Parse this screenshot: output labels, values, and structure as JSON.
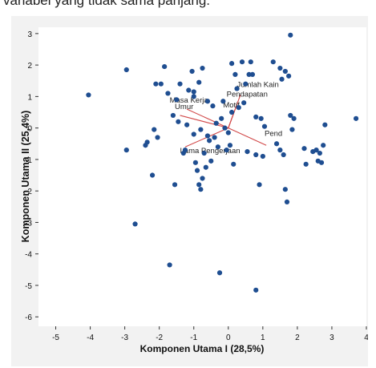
{
  "caption": "variabel yang tidak sama panjang.",
  "chart_data": {
    "type": "scatter",
    "title": "",
    "xlabel": "Komponen Utama I (28,5%)",
    "ylabel": "Komponen Utama II (25,4%)",
    "xlim": [
      -5.5,
      4.0
    ],
    "ylim": [
      -6.3,
      3.2
    ],
    "x_ticks": [
      -5,
      -4,
      -3,
      -2,
      -1,
      0,
      1,
      2,
      3,
      4
    ],
    "x_tick_labels": [
      "-5",
      "-4",
      "-3",
      "-2",
      "-1",
      "0",
      "1",
      "2",
      "3",
      "4"
    ],
    "y_ticks": [
      3,
      2,
      1,
      0,
      -1,
      -2,
      -3,
      -4,
      -5,
      -6
    ],
    "y_tick_labels": [
      "3",
      "2",
      "1",
      "0",
      "-1",
      "-2",
      "-3",
      "-4",
      "-5",
      "-6"
    ],
    "grid": false,
    "colors": {
      "points": "#1f4e91",
      "vectors": "#d24a4a",
      "background": "#f2f2f2",
      "plot_area": "#ffffff"
    },
    "points": [
      {
        "x": -4.05,
        "y": 1.05
      },
      {
        "x": -2.95,
        "y": 1.85
      },
      {
        "x": -2.95,
        "y": -0.7
      },
      {
        "x": -2.7,
        "y": -3.05
      },
      {
        "x": -2.4,
        "y": -0.55
      },
      {
        "x": -2.35,
        "y": -0.45
      },
      {
        "x": -2.2,
        "y": -1.5
      },
      {
        "x": -2.15,
        "y": -0.05
      },
      {
        "x": -2.1,
        "y": 1.4
      },
      {
        "x": -2.05,
        "y": -0.3
      },
      {
        "x": -1.95,
        "y": 1.4
      },
      {
        "x": -1.85,
        "y": 1.95
      },
      {
        "x": -1.75,
        "y": 1.1
      },
      {
        "x": -1.7,
        "y": -4.35
      },
      {
        "x": -1.6,
        "y": 0.4
      },
      {
        "x": -1.55,
        "y": -1.8
      },
      {
        "x": -1.5,
        "y": 0.9
      },
      {
        "x": -1.45,
        "y": 0.2
      },
      {
        "x": -1.4,
        "y": 1.4
      },
      {
        "x": -1.3,
        "y": -0.8
      },
      {
        "x": -1.25,
        "y": -0.7
      },
      {
        "x": -1.2,
        "y": 0.1
      },
      {
        "x": -1.15,
        "y": 1.2
      },
      {
        "x": -1.05,
        "y": 1.8
      },
      {
        "x": -1.0,
        "y": 1.15
      },
      {
        "x": -1.0,
        "y": 1.0
      },
      {
        "x": -1.0,
        "y": -0.2
      },
      {
        "x": -0.95,
        "y": -1.1
      },
      {
        "x": -0.9,
        "y": -1.35
      },
      {
        "x": -0.85,
        "y": 1.45
      },
      {
        "x": -0.85,
        "y": -1.8
      },
      {
        "x": -0.8,
        "y": -1.95
      },
      {
        "x": -0.8,
        "y": -0.05
      },
      {
        "x": -0.75,
        "y": 1.9
      },
      {
        "x": -0.75,
        "y": -1.6
      },
      {
        "x": -0.7,
        "y": -0.8
      },
      {
        "x": -0.65,
        "y": -1.25
      },
      {
        "x": -0.6,
        "y": 0.85
      },
      {
        "x": -0.6,
        "y": -0.25
      },
      {
        "x": -0.55,
        "y": -0.4
      },
      {
        "x": -0.5,
        "y": -1.05
      },
      {
        "x": -0.45,
        "y": 0.7
      },
      {
        "x": -0.4,
        "y": -0.3
      },
      {
        "x": -0.35,
        "y": 0.15
      },
      {
        "x": -0.3,
        "y": -0.6
      },
      {
        "x": -0.25,
        "y": -4.6
      },
      {
        "x": -0.2,
        "y": 0.3
      },
      {
        "x": -0.15,
        "y": 0.85
      },
      {
        "x": -0.1,
        "y": 0.0
      },
      {
        "x": -0.05,
        "y": -0.7
      },
      {
        "x": 0.0,
        "y": -0.15
      },
      {
        "x": 0.05,
        "y": -0.55
      },
      {
        "x": 0.1,
        "y": 2.05
      },
      {
        "x": 0.1,
        "y": 0.5
      },
      {
        "x": 0.15,
        "y": -1.15
      },
      {
        "x": 0.2,
        "y": 1.7
      },
      {
        "x": 0.25,
        "y": 1.25
      },
      {
        "x": 0.3,
        "y": 0.65
      },
      {
        "x": 0.4,
        "y": 2.1
      },
      {
        "x": 0.45,
        "y": 0.8
      },
      {
        "x": 0.5,
        "y": 1.4
      },
      {
        "x": 0.55,
        "y": -0.75
      },
      {
        "x": 0.6,
        "y": 1.7
      },
      {
        "x": 0.65,
        "y": 2.1
      },
      {
        "x": 0.7,
        "y": 1.7
      },
      {
        "x": 0.8,
        "y": 0.35
      },
      {
        "x": 0.8,
        "y": -0.85
      },
      {
        "x": 0.8,
        "y": -5.15
      },
      {
        "x": 0.9,
        "y": -1.8
      },
      {
        "x": 0.95,
        "y": 0.3
      },
      {
        "x": 1.0,
        "y": -0.9
      },
      {
        "x": 1.05,
        "y": 0.05
      },
      {
        "x": 1.3,
        "y": 2.1
      },
      {
        "x": 1.4,
        "y": -0.5
      },
      {
        "x": 1.5,
        "y": 1.9
      },
      {
        "x": 1.5,
        "y": -0.7
      },
      {
        "x": 1.55,
        "y": 1.55
      },
      {
        "x": 1.6,
        "y": -0.85
      },
      {
        "x": 1.65,
        "y": 1.8
      },
      {
        "x": 1.65,
        "y": -1.95
      },
      {
        "x": 1.7,
        "y": -2.35
      },
      {
        "x": 1.75,
        "y": 1.65
      },
      {
        "x": 1.8,
        "y": 0.4
      },
      {
        "x": 1.8,
        "y": 2.95
      },
      {
        "x": 1.85,
        "y": -0.05
      },
      {
        "x": 1.9,
        "y": 0.3
      },
      {
        "x": 2.2,
        "y": -0.65
      },
      {
        "x": 2.25,
        "y": -1.15
      },
      {
        "x": 2.45,
        "y": -0.75
      },
      {
        "x": 2.55,
        "y": -0.7
      },
      {
        "x": 2.6,
        "y": -1.05
      },
      {
        "x": 2.65,
        "y": -0.8
      },
      {
        "x": 2.7,
        "y": -1.1
      },
      {
        "x": 2.75,
        "y": -0.55
      },
      {
        "x": 2.8,
        "y": 0.1
      },
      {
        "x": 3.7,
        "y": 0.3
      }
    ],
    "vectors": [
      {
        "label": "Jumlah Kain",
        "end": [
          0.35,
          1.05
        ],
        "label_at": [
          0.25,
          1.3
        ]
      },
      {
        "label": "Pendapatan",
        "end": [
          0.25,
          0.75
        ],
        "label_at": [
          -0.05,
          1.0
        ]
      },
      {
        "label": "Motif",
        "end": [
          0.18,
          0.55
        ],
        "label_at": [
          -0.15,
          0.65
        ]
      },
      {
        "label": "Masa Kerja",
        "end": [
          -1.4,
          0.4
        ],
        "label_at": [
          -1.7,
          0.8
        ]
      },
      {
        "label": "Umur",
        "end": [
          -1.2,
          0.6
        ],
        "label_at": [
          -1.55,
          0.6
        ]
      },
      {
        "label": "Lama Pengerjaan",
        "end": [
          -1.25,
          -0.6
        ],
        "label_at": [
          -1.4,
          -0.8
        ]
      },
      {
        "label": "Pend",
        "end": [
          1.1,
          -0.55
        ],
        "label_at": [
          1.05,
          -0.25
        ]
      }
    ]
  }
}
